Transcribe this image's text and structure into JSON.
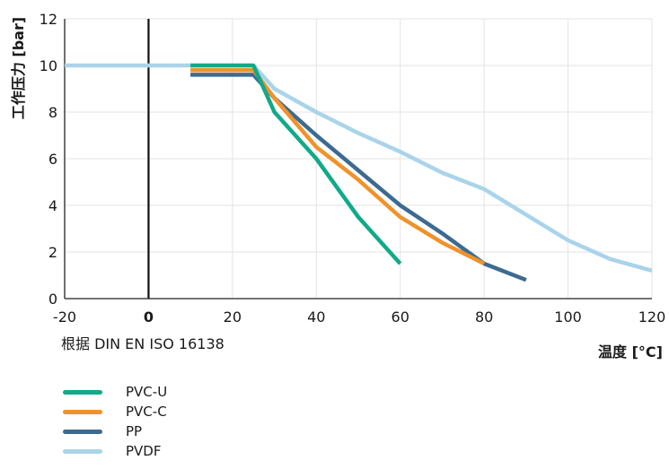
{
  "chart_data": {
    "type": "line",
    "title": "",
    "xlabel": "温度 [°C]",
    "ylabel": "工作压力 [bar]",
    "note": "根据 DIN EN ISO 16138",
    "xlim": [
      -20,
      120
    ],
    "ylim": [
      0,
      12
    ],
    "xticks": [
      -20,
      0,
      20,
      40,
      60,
      80,
      100,
      120
    ],
    "yticks": [
      0,
      2,
      4,
      6,
      8,
      10,
      12
    ],
    "grid": true,
    "legend_position": "bottom-left",
    "highlight_x": 0,
    "series": [
      {
        "name": "PVC-U",
        "color": "#12a98a",
        "points": [
          [
            10,
            10
          ],
          [
            25,
            10
          ],
          [
            30,
            8
          ],
          [
            40,
            6
          ],
          [
            50,
            3.5
          ],
          [
            60,
            1.5
          ]
        ]
      },
      {
        "name": "PVC-C",
        "color": "#f0922b",
        "points": [
          [
            10,
            9.8
          ],
          [
            25,
            9.8
          ],
          [
            30,
            8.6
          ],
          [
            40,
            6.5
          ],
          [
            50,
            5.1
          ],
          [
            60,
            3.5
          ],
          [
            70,
            2.4
          ],
          [
            80,
            1.5
          ]
        ]
      },
      {
        "name": "PP",
        "color": "#3d6a91",
        "points": [
          [
            10,
            9.6
          ],
          [
            25,
            9.6
          ],
          [
            30,
            8.6
          ],
          [
            40,
            7
          ],
          [
            50,
            5.5
          ],
          [
            60,
            4
          ],
          [
            70,
            2.8
          ],
          [
            80,
            1.5
          ],
          [
            90,
            0.8
          ]
        ]
      },
      {
        "name": "PVDF",
        "color": "#a9d4ea",
        "points": [
          [
            -20,
            10
          ],
          [
            25,
            10
          ],
          [
            30,
            9
          ],
          [
            40,
            8
          ],
          [
            50,
            7.1
          ],
          [
            60,
            6.3
          ],
          [
            70,
            5.4
          ],
          [
            80,
            4.7
          ],
          [
            90,
            3.6
          ],
          [
            100,
            2.5
          ],
          [
            110,
            1.7
          ],
          [
            120,
            1.2
          ]
        ]
      }
    ]
  }
}
